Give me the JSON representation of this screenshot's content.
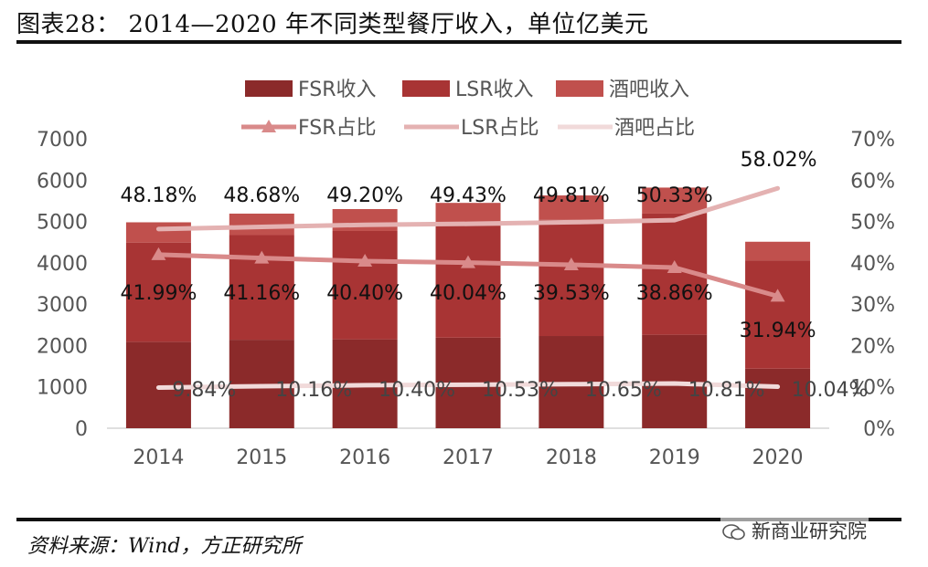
{
  "title": "图表28：  2014—2020 年不同类型餐厅收入，单位亿美元",
  "source": "资料来源：Wind，方正研究所",
  "watermark": "新商业研究院",
  "colors": {
    "fsr_bar": "#8b2a2a",
    "lsr_bar": "#a83434",
    "bar_bar": "#c0504d",
    "fsr_line": "#d98a8a",
    "lsr_line": "#e4b2b2",
    "bar_line": "#f1dada"
  },
  "chart_data": {
    "type": "bar",
    "stacked": true,
    "categories": [
      "2014",
      "2015",
      "2016",
      "2017",
      "2018",
      "2019",
      "2020"
    ],
    "series": [
      {
        "name": "FSR收入",
        "kind": "bar",
        "color": "#8b2a2a",
        "values": [
          2090,
          2140,
          2150,
          2190,
          2230,
          2260,
          1440
        ]
      },
      {
        "name": "LSR收入",
        "kind": "bar",
        "color": "#a83434",
        "values": [
          2400,
          2530,
          2620,
          2700,
          2810,
          2930,
          2620
        ]
      },
      {
        "name": "酒吧收入",
        "kind": "bar",
        "color": "#c0504d",
        "values": [
          490,
          520,
          530,
          560,
          590,
          630,
          450
        ]
      },
      {
        "name": "FSR占比",
        "kind": "line",
        "axis": "right",
        "marker": "triangle",
        "color": "#d98a8a",
        "values": [
          41.99,
          41.16,
          40.4,
          40.04,
          39.53,
          38.86,
          31.94
        ],
        "labels": [
          "41.99%",
          "41.16%",
          "40.40%",
          "40.04%",
          "39.53%",
          "38.86%",
          "31.94%"
        ]
      },
      {
        "name": "LSR占比",
        "kind": "line",
        "axis": "right",
        "color": "#e4b2b2",
        "values": [
          48.18,
          48.68,
          49.2,
          49.43,
          49.81,
          50.33,
          58.02
        ],
        "labels": [
          "48.18%",
          "48.68%",
          "49.20%",
          "49.43%",
          "49.81%",
          "50.33%",
          "58.02%"
        ]
      },
      {
        "name": "酒吧占比",
        "kind": "line",
        "axis": "right",
        "color": "#f1dada",
        "values": [
          9.84,
          10.16,
          10.4,
          10.53,
          10.65,
          10.81,
          10.04
        ],
        "labels": [
          "9.84%",
          "10.16%",
          "10.40%",
          "10.53%",
          "10.65%",
          "10.81%",
          "10.04%"
        ]
      }
    ],
    "y_left": {
      "min": 0,
      "max": 7000,
      "ticks": [
        "0",
        "1000",
        "2000",
        "3000",
        "4000",
        "5000",
        "6000",
        "7000"
      ]
    },
    "y_right": {
      "min": 0,
      "max": 70,
      "ticks": [
        "0%",
        "10%",
        "20%",
        "30%",
        "40%",
        "50%",
        "60%",
        "70%"
      ]
    },
    "legend_position": "top-center",
    "grid": false
  }
}
